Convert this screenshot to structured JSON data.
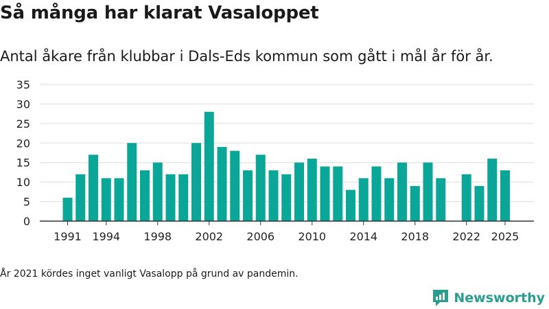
{
  "title": "Så många har klarat Vasaloppet",
  "subtitle": "Antal åkare från klubbar i Dals-Eds kommun som gått i mål år för år.",
  "footnote": "År 2021 kördes inget vanligt Vasalopp på grund av pandemin.",
  "brand": {
    "name": "Newsworthy",
    "icon": "newsworthy-logo-icon",
    "color": "#2a9d8f"
  },
  "chart_data": {
    "type": "bar",
    "x": [
      1991,
      1992,
      1993,
      1994,
      1995,
      1996,
      1997,
      1998,
      1999,
      2000,
      2001,
      2002,
      2003,
      2004,
      2005,
      2006,
      2007,
      2008,
      2009,
      2010,
      2011,
      2012,
      2013,
      2014,
      2015,
      2016,
      2017,
      2018,
      2019,
      2020,
      2021,
      2022,
      2023,
      2024,
      2025
    ],
    "values": [
      6,
      12,
      17,
      11,
      11,
      20,
      13,
      15,
      12,
      12,
      20,
      28,
      19,
      18,
      13,
      17,
      13,
      12,
      15,
      16,
      14,
      14,
      8,
      11,
      14,
      11,
      15,
      9,
      15,
      11,
      null,
      12,
      9,
      16,
      13
    ],
    "x_tick_labels": [
      "1991",
      "1994",
      "1998",
      "2002",
      "2006",
      "2010",
      "2014",
      "2018",
      "2022",
      "2025"
    ],
    "y_ticks": [
      "0",
      "5",
      "10",
      "15",
      "20",
      "25",
      "30",
      "35"
    ],
    "ylim": [
      0,
      35
    ],
    "bar_color": "#0aa698",
    "grid": true
  }
}
